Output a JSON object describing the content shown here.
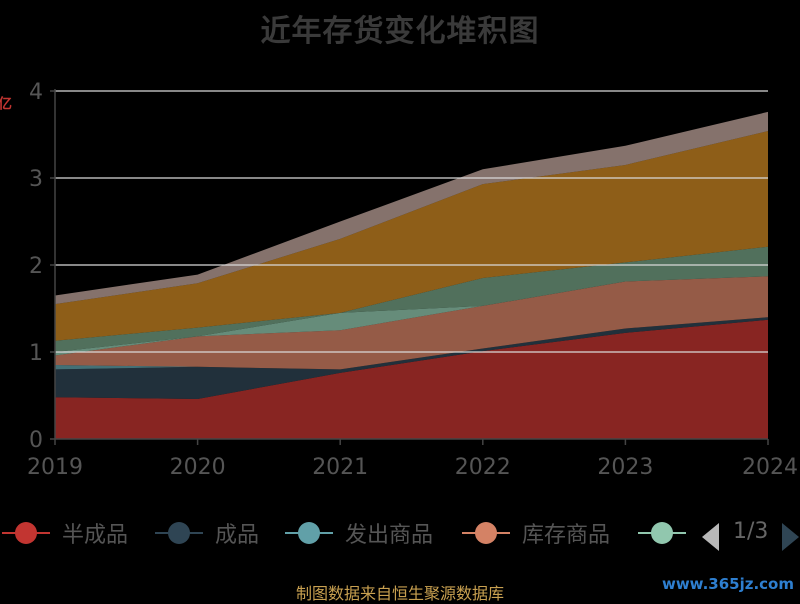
{
  "chart_data": {
    "type": "area",
    "stacked": true,
    "title": "近年存货变化堆积图",
    "categories": [
      "2019",
      "2020",
      "2021",
      "2022",
      "2023",
      "2024"
    ],
    "yaxis_ticks": [
      "0",
      "1",
      "2",
      "3",
      "4"
    ],
    "ylim": [
      0,
      4
    ],
    "grid": true,
    "legend_position": "bottom",
    "series": [
      {
        "name": "半成品",
        "values": [
          0.48,
          0.46,
          0.76,
          1.01,
          1.22,
          1.37
        ],
        "color": "#c23531"
      },
      {
        "name": "成品",
        "values": [
          0.32,
          0.37,
          0.04,
          0.03,
          0.05,
          0.03
        ],
        "color": "#2f4554"
      },
      {
        "name": "发出商品",
        "values": [
          0.05,
          0.0,
          0.0,
          0.0,
          0.0,
          0.0
        ],
        "color": "#61a0a8"
      },
      {
        "name": "库存商品",
        "values": [
          0.11,
          0.35,
          0.45,
          0.49,
          0.54,
          0.47
        ],
        "color": "#d48265"
      },
      {
        "name": "",
        "values": [
          0.04,
          0.0,
          0.2,
          0.0,
          0.0,
          0.0
        ],
        "color": "#91c7ae"
      },
      {
        "name": "",
        "values": [
          0.13,
          0.1,
          0.0,
          0.32,
          0.22,
          0.34
        ],
        "color": "#749f83"
      },
      {
        "name": "",
        "values": [
          0.42,
          0.51,
          0.85,
          1.08,
          1.12,
          1.33
        ],
        "color": "#ca8622"
      },
      {
        "name": "",
        "values": [
          0.1,
          0.1,
          0.2,
          0.17,
          0.22,
          0.22
        ],
        "color": "#bda29a"
      }
    ]
  },
  "legend": {
    "items": [
      {
        "label": "半成品",
        "color": "#c23531"
      },
      {
        "label": "成品",
        "color": "#2f4554"
      },
      {
        "label": "发出商品",
        "color": "#61a0a8"
      },
      {
        "label": "库存商品",
        "color": "#d48265"
      },
      {
        "label": "",
        "color": "#91c7ae"
      }
    ],
    "page_info": "1/3"
  },
  "footer": "制图数据来自恒生聚源数据库",
  "watermark": "www.365jz.com",
  "ylabel_fragment": "亿"
}
